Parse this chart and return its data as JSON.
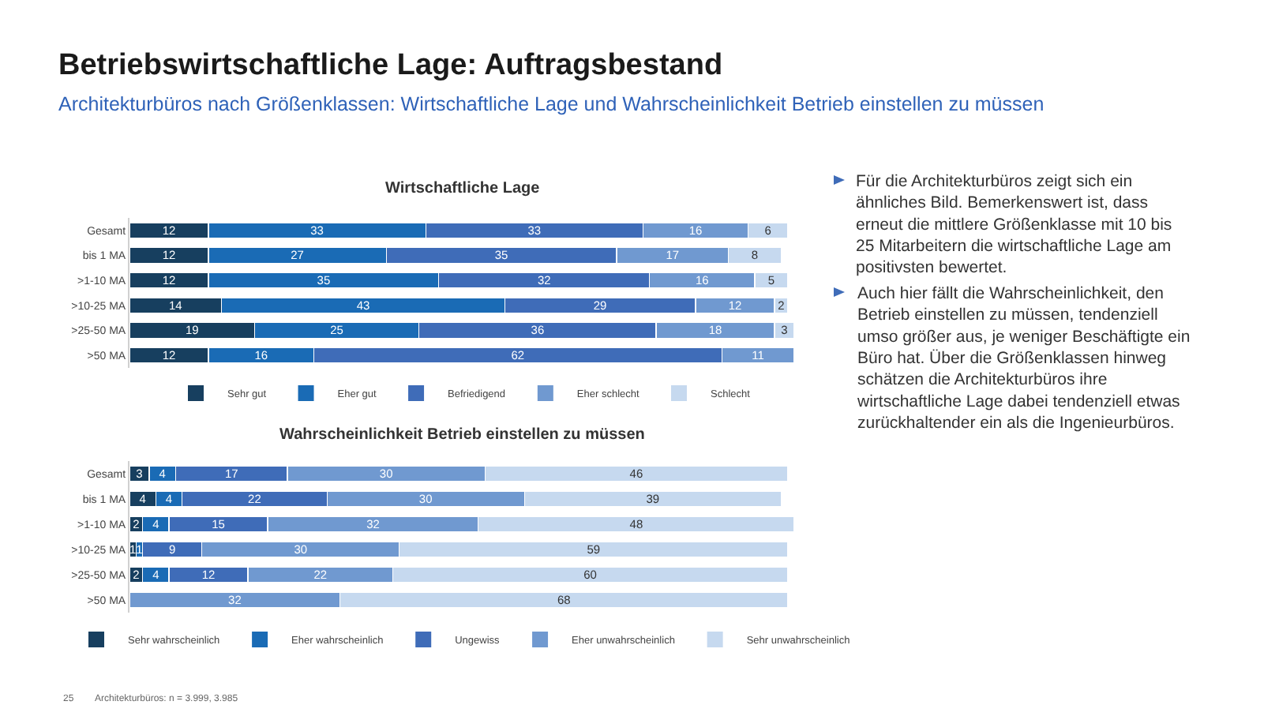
{
  "chart_data": [
    {
      "type": "other",
      "title": "Betriebswirtschaftliche Lage: Auftragsbestand",
      "subtitle": "Architekturbüros nach Größenklassen: Wirtschaftliche Lage und Wahrscheinlichkeit Betrieb einstellen zu müssen",
      "annotations": [
        "Für die Architekturbüros zeigt sich ein ähnliches Bild. Bemerkenswert ist, dass erneut die mittlere Größenklasse mit 10 bis 25 Mitarbeitern die wirtschaftliche Lage am positivsten bewertet.",
        "Auch hier fällt die Wahrscheinlichkeit, den Betrieb einstellen zu müssen, tendenziell umso größer aus, je weniger Beschäftigte ein Büro hat. Über die Größenklassen hinweg schätzen die Architekturbüros ihre wirtschaftliche Lage dabei tendenziell etwas zurückhaltender ein als die Ingenieurbüros.",
        "25",
        "Architekturbüros: n = 3.999, 3.985"
      ]
    },
    {
      "type": "bar",
      "orientation": "horizontal",
      "stacked": true,
      "data_labels": true,
      "legend": "bottom",
      "title": "Wirtschaftliche Lage",
      "categories": [
        "Gesamt",
        "bis 1 MA",
        ">1-10 MA",
        ">10-25 MA",
        ">25-50 MA",
        ">50 MA"
      ],
      "series": [
        {
          "name": "Sehr gut",
          "color": "#173f5f",
          "values": [
            12,
            12,
            12,
            14,
            19,
            12
          ]
        },
        {
          "name": "Eher gut",
          "color": "#1a6bb5",
          "values": [
            33,
            27,
            35,
            43,
            25,
            16
          ]
        },
        {
          "name": "Befriedigend",
          "color": "#3f6cb8",
          "values": [
            33,
            35,
            32,
            29,
            36,
            62
          ]
        },
        {
          "name": "Eher schlecht",
          "color": "#7099d0",
          "values": [
            16,
            17,
            16,
            12,
            18,
            11
          ]
        },
        {
          "name": "Schlecht",
          "color": "#c6d9ef",
          "values": [
            6,
            8,
            5,
            2,
            3,
            null
          ]
        }
      ]
    },
    {
      "type": "bar",
      "orientation": "horizontal",
      "stacked": true,
      "data_labels": true,
      "legend": "bottom",
      "title": "Wahrscheinlichkeit Betrieb einstellen zu müssen",
      "categories": [
        "Gesamt",
        "bis 1 MA",
        ">1-10 MA",
        ">10-25 MA",
        ">25-50 MA",
        ">50 MA"
      ],
      "series": [
        {
          "name": "Sehr wahrscheinlich",
          "color": "#173f5f",
          "values": [
            3,
            4,
            2,
            1,
            2,
            null
          ]
        },
        {
          "name": "Eher wahrscheinlich",
          "color": "#1a6bb5",
          "values": [
            4,
            4,
            4,
            1,
            4,
            null
          ]
        },
        {
          "name": "Ungewiss",
          "color": "#3f6cb8",
          "values": [
            17,
            22,
            15,
            9,
            12,
            null
          ]
        },
        {
          "name": "Eher unwahrscheinlich",
          "color": "#7099d0",
          "values": [
            30,
            30,
            32,
            30,
            22,
            32
          ]
        },
        {
          "name": "Sehr unwahrscheinlich",
          "color": "#c6d9ef",
          "values": [
            46,
            39,
            48,
            59,
            60,
            68
          ]
        }
      ]
    }
  ]
}
